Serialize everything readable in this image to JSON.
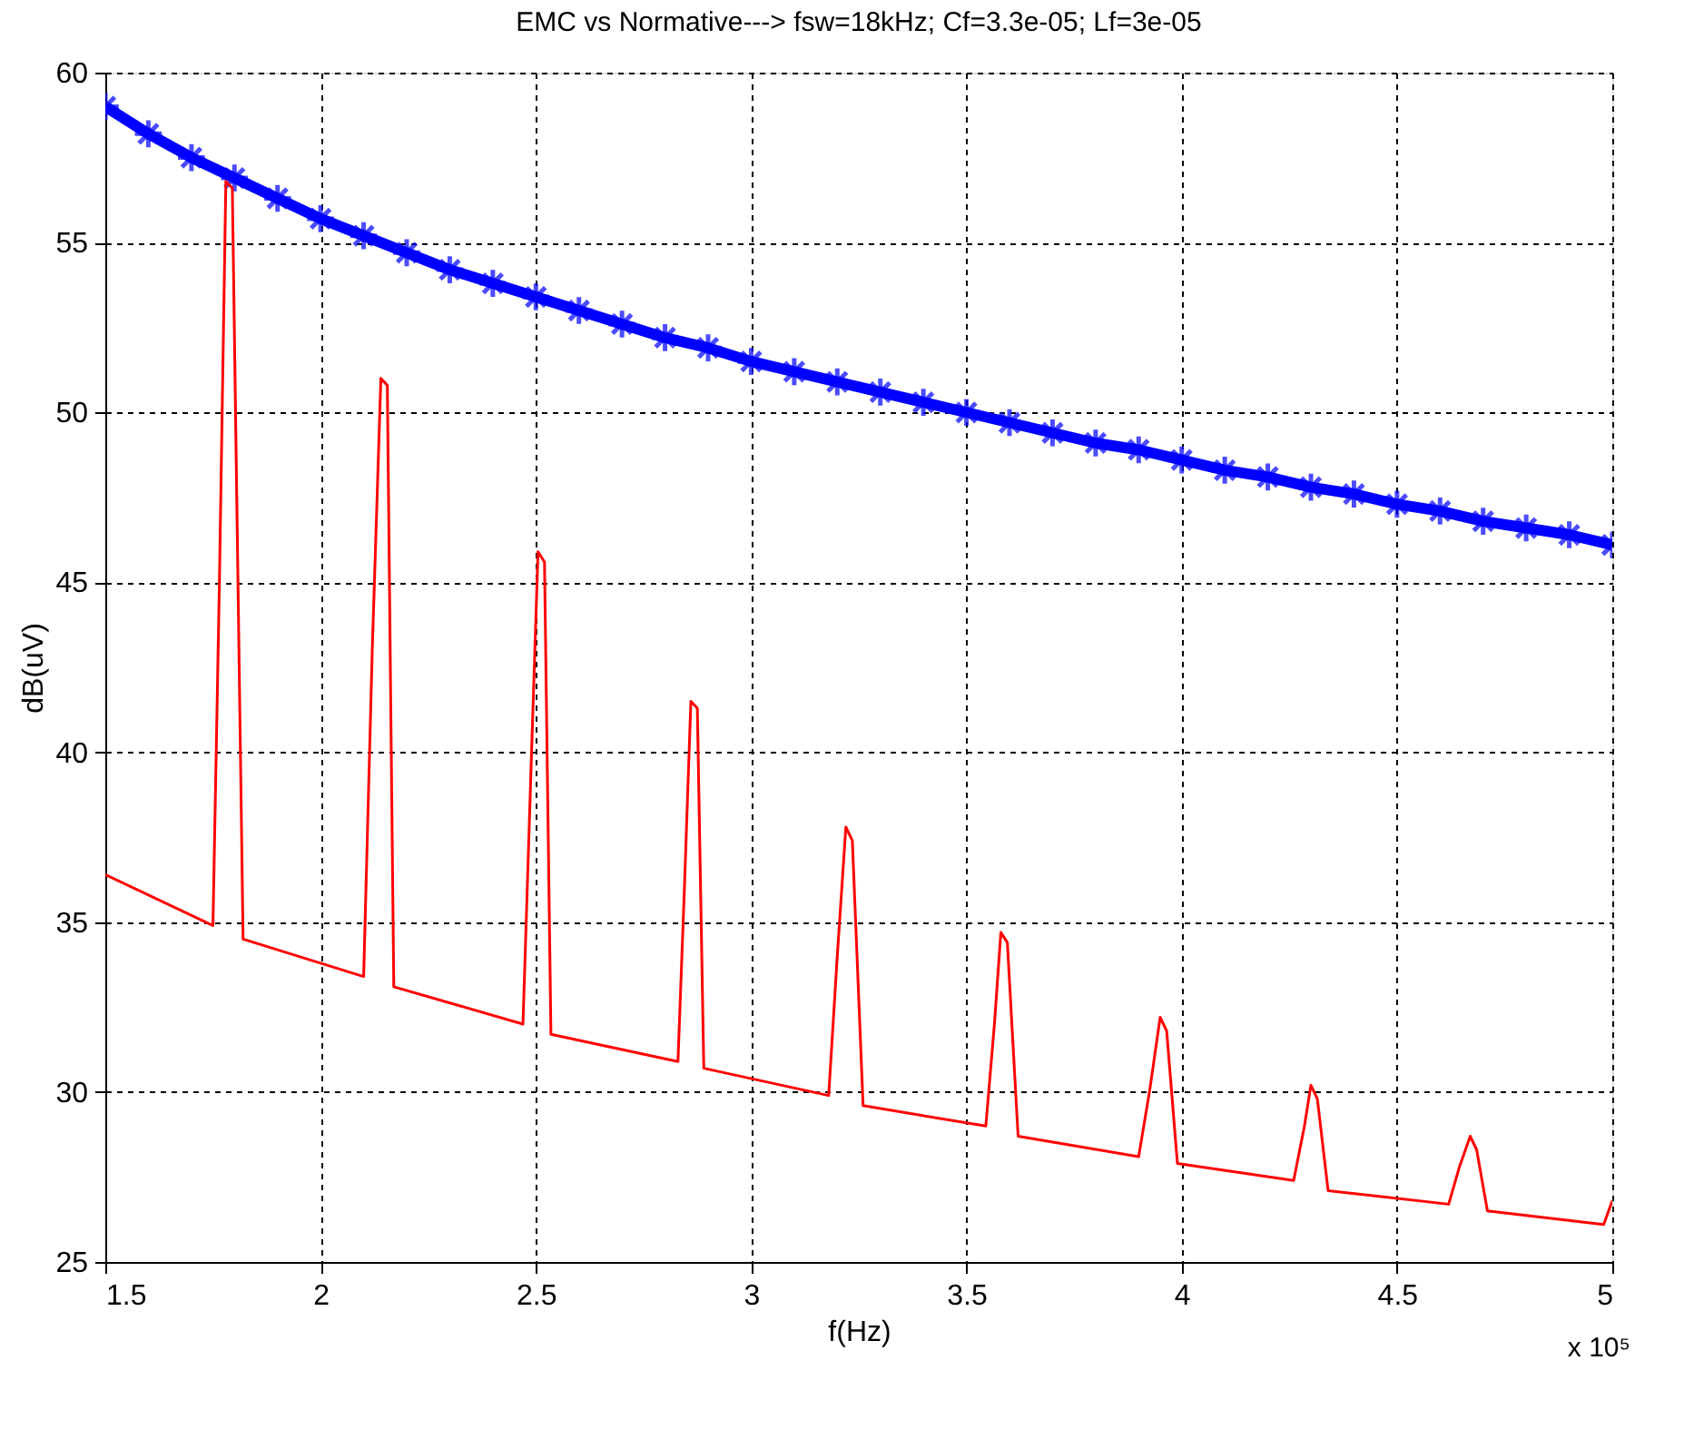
{
  "chart_data": {
    "type": "line",
    "title": "EMC vs Normative---> fsw=18kHz; Cf=3.3e-05; Lf=3e-05",
    "xlabel": "f(Hz)",
    "ylabel": "dB(uV)",
    "annotations": [
      "x 10⁵"
    ],
    "xlim": [
      1.5,
      5
    ],
    "ylim": [
      25,
      60
    ],
    "xticks": [
      1.5,
      2,
      2.5,
      3,
      3.5,
      4,
      4.5,
      5
    ],
    "yticks": [
      25,
      30,
      35,
      40,
      45,
      50,
      55,
      60
    ],
    "grid": true,
    "series": [
      {
        "color": "#0000ff",
        "marker": "cross",
        "x": [
          1.5,
          1.6,
          1.7,
          1.8,
          1.9,
          2.0,
          2.1,
          2.2,
          2.3,
          2.4,
          2.5,
          2.6,
          2.7,
          2.8,
          2.9,
          3.0,
          3.1,
          3.2,
          3.3,
          3.4,
          3.5,
          3.6,
          3.7,
          3.8,
          3.9,
          4.0,
          4.1,
          4.2,
          4.3,
          4.4,
          4.5,
          4.6,
          4.7,
          4.8,
          4.9,
          5.0
        ],
        "values": [
          59.0,
          58.2,
          57.5,
          56.9,
          56.3,
          55.7,
          55.2,
          54.7,
          54.2,
          53.8,
          53.4,
          53.0,
          52.6,
          52.2,
          51.9,
          51.5,
          51.2,
          50.9,
          50.6,
          50.3,
          50.0,
          49.7,
          49.4,
          49.1,
          48.9,
          48.6,
          48.3,
          48.1,
          47.8,
          47.6,
          47.3,
          47.1,
          46.8,
          46.6,
          46.4,
          46.1
        ]
      },
      {
        "color": "#ff0000",
        "marker": "none",
        "x": [
          1.5,
          1.75,
          1.765,
          1.78,
          1.795,
          1.82,
          2.1,
          2.12,
          2.14,
          2.155,
          2.17,
          2.47,
          2.49,
          2.505,
          2.52,
          2.535,
          2.83,
          2.845,
          2.86,
          2.875,
          2.89,
          3.18,
          3.2,
          3.22,
          3.235,
          3.26,
          3.545,
          3.565,
          3.58,
          3.595,
          3.62,
          3.9,
          3.925,
          3.95,
          3.965,
          3.99,
          4.26,
          4.285,
          4.3,
          4.315,
          4.34,
          4.62,
          4.645,
          4.67,
          4.685,
          4.71,
          4.98,
          5.0
        ],
        "values": [
          36.4,
          34.9,
          45,
          56.8,
          56.6,
          34.5,
          33.4,
          43,
          51.0,
          50.8,
          33.1,
          32.0,
          40,
          45.9,
          45.6,
          31.7,
          30.9,
          36,
          41.5,
          41.3,
          30.7,
          29.9,
          34,
          37.8,
          37.4,
          29.6,
          29.0,
          32,
          34.7,
          34.4,
          28.7,
          28.1,
          30,
          32.2,
          31.8,
          27.9,
          27.4,
          29,
          30.2,
          29.8,
          27.1,
          26.7,
          27.8,
          28.7,
          28.3,
          26.5,
          26.1,
          26.8
        ]
      }
    ]
  }
}
